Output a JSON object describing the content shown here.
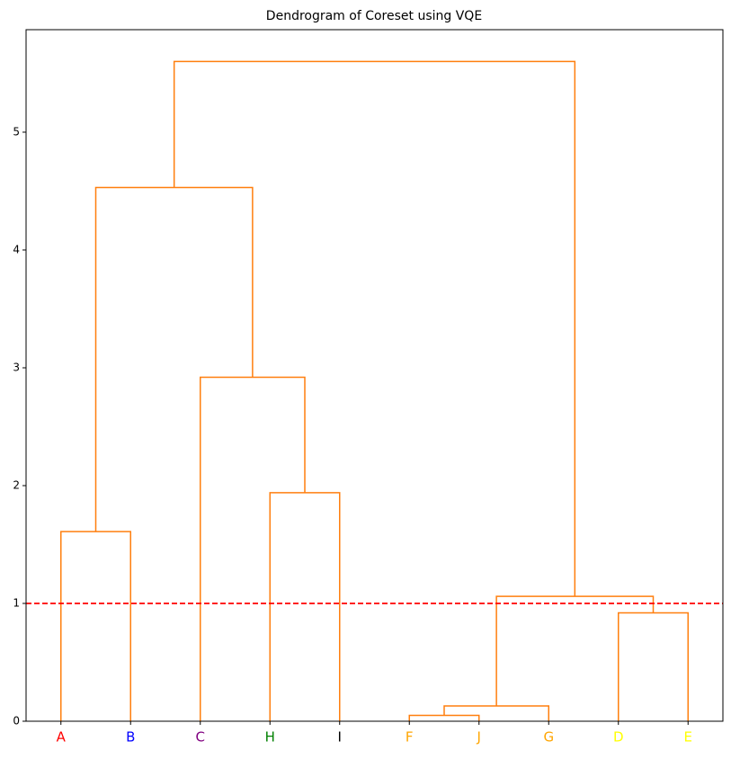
{
  "chart_data": {
    "type": "dendrogram",
    "title": "Dendrogram of Coreset using VQE",
    "link_color": "#ff7f0e",
    "ylim": [
      0,
      5.87
    ],
    "yticks": [
      0,
      1,
      2,
      3,
      4,
      5
    ],
    "threshold": 1,
    "threshold_color": "#ff0000",
    "tree": {
      "height": 5.6,
      "children": [
        {
          "height": 4.53,
          "children": [
            {
              "height": 1.61,
              "children": [
                {
                  "label": "A",
                  "color": "#ff0000"
                },
                {
                  "label": "B",
                  "color": "#0000ff"
                }
              ]
            },
            {
              "height": 2.92,
              "children": [
                {
                  "label": "C",
                  "color": "#800080"
                },
                {
                  "height": 1.94,
                  "children": [
                    {
                      "label": "H",
                      "color": "#008000"
                    },
                    {
                      "label": "I",
                      "color": "#000000"
                    }
                  ]
                }
              ]
            }
          ]
        },
        {
          "height": 1.06,
          "children": [
            {
              "height": 0.13,
              "children": [
                {
                  "height": 0.05,
                  "children": [
                    {
                      "label": "F",
                      "color": "#ffa500"
                    },
                    {
                      "label": "J",
                      "color": "#ffa500"
                    }
                  ]
                },
                {
                  "label": "G",
                  "color": "#ffa500"
                }
              ]
            },
            {
              "height": 0.92,
              "children": [
                {
                  "label": "D",
                  "color": "#ffff00"
                },
                {
                  "label": "E",
                  "color": "#ffff00"
                }
              ]
            }
          ]
        }
      ]
    }
  }
}
